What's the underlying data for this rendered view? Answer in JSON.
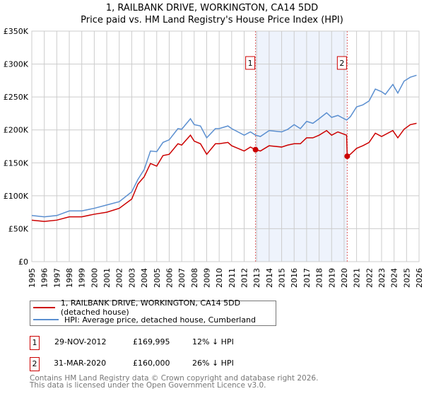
{
  "title": "1, RAILBANK DRIVE, WORKINGTON, CA14 5DD",
  "subtitle": "Price paid vs. HM Land Registry's House Price Index (HPI)",
  "chart_data": {
    "type": "line",
    "title": "1, RAILBANK DRIVE, WORKINGTON, CA14 5DD — Price paid vs. HM Land Registry's House Price Index (HPI)",
    "xlim": [
      1995,
      2026
    ],
    "ylim": [
      0,
      350000
    ],
    "x_ticks": [
      "1995",
      "1996",
      "1997",
      "1998",
      "1999",
      "2000",
      "2001",
      "2002",
      "2003",
      "2004",
      "2005",
      "2006",
      "2007",
      "2008",
      "2009",
      "2010",
      "2011",
      "2012",
      "2013",
      "2014",
      "2015",
      "2016",
      "2017",
      "2018",
      "2019",
      "2020",
      "2021",
      "2022",
      "2023",
      "2024",
      "2025",
      "2026"
    ],
    "y_ticks": [
      {
        "v": 0,
        "label": "£0"
      },
      {
        "v": 50000,
        "label": "£50K"
      },
      {
        "v": 100000,
        "label": "£100K"
      },
      {
        "v": 150000,
        "label": "£150K"
      },
      {
        "v": 200000,
        "label": "£200K"
      },
      {
        "v": 250000,
        "label": "£250K"
      },
      {
        "v": 300000,
        "label": "£300K"
      },
      {
        "v": 350000,
        "label": "£350K"
      }
    ],
    "grid": true,
    "shaded_range": [
      2012.91,
      2020.25
    ],
    "series": [
      {
        "name": "1, RAILBANK DRIVE, WORKINGTON, CA14 5DD (detached house)",
        "color": "#cc0000",
        "x": [
          1995,
          1996,
          1997,
          1998,
          1999,
          2000,
          2001,
          2002,
          2003,
          2003.5,
          2004,
          2004.5,
          2005,
          2005.5,
          2006,
          2006.7,
          2007,
          2007.7,
          2008,
          2008.5,
          2009,
          2009.7,
          2010,
          2010.7,
          2011,
          2011.5,
          2012,
          2012.5,
          2012.91,
          2013.3,
          2014,
          2015,
          2015.5,
          2016,
          2016.5,
          2017,
          2017.5,
          2018,
          2018.6,
          2019,
          2019.5,
          2020.2,
          2020.25,
          2020.5,
          2021,
          2021.5,
          2022,
          2022.5,
          2023,
          2023.9,
          2024.3,
          2024.8,
          2025.3,
          2025.8
        ],
        "y": [
          63000,
          61000,
          63000,
          68000,
          68000,
          72000,
          75000,
          81000,
          95000,
          118000,
          129000,
          149000,
          145000,
          161000,
          163000,
          179000,
          177000,
          192000,
          183000,
          179000,
          163000,
          179000,
          179000,
          181000,
          176000,
          172000,
          168000,
          174000,
          169995,
          168000,
          176000,
          174000,
          177000,
          179000,
          179000,
          188000,
          188000,
          192000,
          199000,
          192000,
          197000,
          192000,
          160000,
          163000,
          172000,
          176000,
          181000,
          195000,
          190000,
          199000,
          188000,
          201000,
          208000,
          210000
        ]
      },
      {
        "name": "HPI: Average price, detached house, Cumberland",
        "color": "#5b8fd0",
        "x": [
          1995,
          1996,
          1997,
          1998,
          1999,
          2000,
          2001,
          2002,
          2003,
          2003.5,
          2004,
          2004.5,
          2005,
          2005.5,
          2006,
          2006.7,
          2007,
          2007.7,
          2008,
          2008.5,
          2009,
          2009.7,
          2010,
          2010.7,
          2011,
          2011.5,
          2012,
          2012.5,
          2012.91,
          2013.3,
          2014,
          2015,
          2015.5,
          2016,
          2016.5,
          2017,
          2017.5,
          2018,
          2018.6,
          2019,
          2019.5,
          2020.2,
          2020.5,
          2021,
          2021.5,
          2022,
          2022.5,
          2023,
          2023.3,
          2023.9,
          2024.3,
          2024.8,
          2025.3,
          2025.8
        ],
        "y": [
          70000,
          68000,
          70000,
          77000,
          77000,
          81000,
          86000,
          91000,
          106000,
          125000,
          140000,
          168000,
          167000,
          181000,
          185000,
          202000,
          201000,
          217000,
          208000,
          206000,
          188000,
          202000,
          202000,
          206000,
          202000,
          197000,
          192000,
          197000,
          192000,
          190000,
          199000,
          197000,
          201000,
          208000,
          202000,
          213000,
          210000,
          217000,
          226000,
          219000,
          222000,
          215000,
          220000,
          235000,
          238000,
          244000,
          262000,
          258000,
          254000,
          269000,
          256000,
          274000,
          280000,
          283000
        ]
      }
    ],
    "annotations": [
      {
        "label": "1",
        "x": 2012.91,
        "y": 169995
      },
      {
        "label": "2",
        "x": 2020.25,
        "y": 160000
      }
    ],
    "legend_position": "below"
  },
  "legend": [
    "1, RAILBANK DRIVE, WORKINGTON, CA14 5DD (detached house)",
    "HPI: Average price, detached house, Cumberland"
  ],
  "transactions": [
    {
      "num": "1",
      "date": "29-NOV-2012",
      "price": "£169,995",
      "hpi": "12% ↓ HPI"
    },
    {
      "num": "2",
      "date": "31-MAR-2020",
      "price": "£160,000",
      "hpi": "26% ↓ HPI"
    }
  ],
  "footer": [
    "Contains HM Land Registry data © Crown copyright and database right 2026.",
    "This data is licensed under the Open Government Licence v3.0."
  ],
  "colors": {
    "red": "#cc0000",
    "blue": "#5b8fd0",
    "shade": "#eef3fc"
  }
}
